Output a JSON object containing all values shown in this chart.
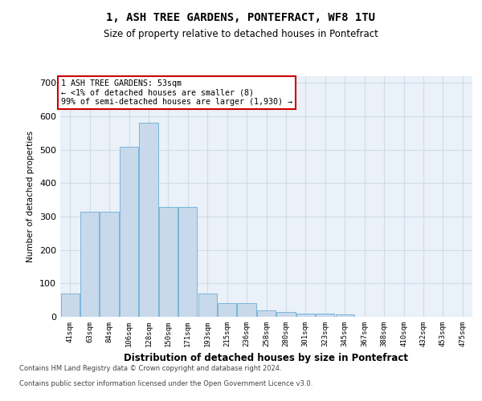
{
  "title": "1, ASH TREE GARDENS, PONTEFRACT, WF8 1TU",
  "subtitle": "Size of property relative to detached houses in Pontefract",
  "xlabel": "Distribution of detached houses by size in Pontefract",
  "ylabel": "Number of detached properties",
  "bar_color": "#c8d9eb",
  "bar_edge_color": "#6baed6",
  "categories": [
    "41sqm",
    "63sqm",
    "84sqm",
    "106sqm",
    "128sqm",
    "150sqm",
    "171sqm",
    "193sqm",
    "215sqm",
    "236sqm",
    "258sqm",
    "280sqm",
    "301sqm",
    "323sqm",
    "345sqm",
    "367sqm",
    "388sqm",
    "410sqm",
    "432sqm",
    "453sqm",
    "475sqm"
  ],
  "values": [
    70,
    315,
    315,
    510,
    580,
    330,
    330,
    70,
    40,
    40,
    20,
    15,
    10,
    10,
    8,
    0,
    0,
    0,
    0,
    0,
    0
  ],
  "annotation_text": "1 ASH TREE GARDENS: 53sqm\n← <1% of detached houses are smaller (8)\n99% of semi-detached houses are larger (1,930) →",
  "annotation_box_facecolor": "#ffffff",
  "annotation_border_color": "#cc0000",
  "ylim": [
    0,
    720
  ],
  "yticks": [
    0,
    100,
    200,
    300,
    400,
    500,
    600,
    700
  ],
  "footer_line1": "Contains HM Land Registry data © Crown copyright and database right 2024.",
  "footer_line2": "Contains public sector information licensed under the Open Government Licence v3.0.",
  "bg_color": "#eaf1f8",
  "fig_bg_color": "#ffffff",
  "grid_color": "#d0dce8"
}
